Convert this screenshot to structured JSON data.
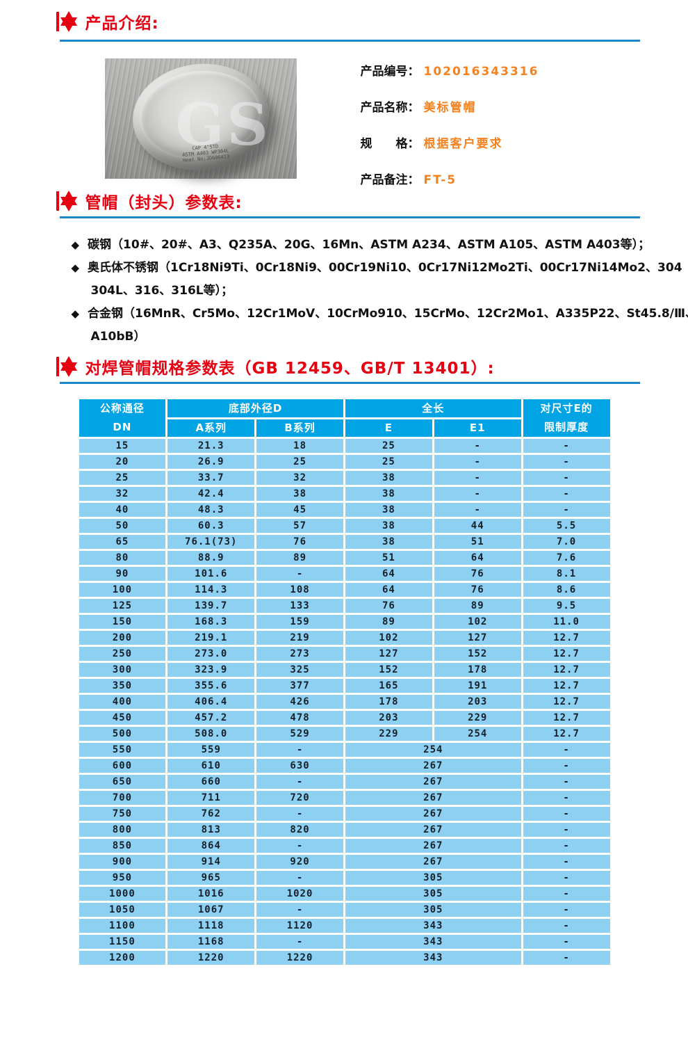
{
  "colors": {
    "accent_red": "#e60012",
    "divider_blue": "#1b87c9",
    "value_orange": "#f5821f",
    "table_header_bg": "#00a3e4",
    "table_row_bg": "#8dd0f2",
    "table_grid_white": "#ffffff"
  },
  "sections": {
    "intro_title": "产品介绍:",
    "params_title": "管帽（封头）参数表:",
    "spec_title": "对焊管帽规格参数表（GB 12459、GB/T 13401）:"
  },
  "product": {
    "photo": {
      "watermark": "GS",
      "stamp_lines": [
        "CAP 4\"STD",
        "ASTM A403 WP304L",
        "Heat No:JD606413"
      ]
    },
    "fields": [
      {
        "label": "产品编号：",
        "value": "102016343316"
      },
      {
        "label": "产品名称：",
        "value": "美标管帽"
      },
      {
        "label": "规　　格：",
        "value": "根据客户要求"
      },
      {
        "label": "产品备注：",
        "value": "FT-5"
      }
    ]
  },
  "materials": {
    "bullets": [
      {
        "lines": [
          "碳钢（10#、20#、A3、Q235A、20G、16Mn、ASTM A234、ASTM A105、ASTM A403等）；"
        ]
      },
      {
        "lines": [
          "奥氏体不锈钢（1Cr18Ni9Ti、0Cr18Ni9、00Cr19Ni10、0Cr17Ni12Mo2Ti、00Cr17Ni14Mo2、304",
          "304L、316、316L等）；"
        ]
      },
      {
        "lines": [
          "合金钢（16MnR、Cr5Mo、12Cr1MoV、10CrMo910、15CrMo、12Cr2Mo1、A335P22、St45.8/Ⅲ、",
          "A10bB）"
        ]
      }
    ]
  },
  "spec_table": {
    "header": {
      "col_dn": [
        "公称通径",
        "DN"
      ],
      "group_d": "底部外径D",
      "sub_a": "A系列",
      "sub_b": "B系列",
      "group_len": "全长",
      "sub_e": "E",
      "sub_e1": "E1",
      "col_limit": [
        "对尺寸E的",
        "限制厚度"
      ]
    },
    "rows": [
      {
        "dn": "15",
        "a": "21.3",
        "b": "18",
        "e": "25",
        "e1": "-",
        "t": "-",
        "merge": false
      },
      {
        "dn": "20",
        "a": "26.9",
        "b": "25",
        "e": "25",
        "e1": "-",
        "t": "-",
        "merge": false
      },
      {
        "dn": "25",
        "a": "33.7",
        "b": "32",
        "e": "38",
        "e1": "-",
        "t": "-",
        "merge": false
      },
      {
        "dn": "32",
        "a": "42.4",
        "b": "38",
        "e": "38",
        "e1": "-",
        "t": "-",
        "merge": false
      },
      {
        "dn": "40",
        "a": "48.3",
        "b": "45",
        "e": "38",
        "e1": "-",
        "t": "-",
        "merge": false
      },
      {
        "dn": "50",
        "a": "60.3",
        "b": "57",
        "e": "38",
        "e1": "44",
        "t": "5.5",
        "merge": false
      },
      {
        "dn": "65",
        "a": "76.1(73)",
        "b": "76",
        "e": "38",
        "e1": "51",
        "t": "7.0",
        "merge": false
      },
      {
        "dn": "80",
        "a": "88.9",
        "b": "89",
        "e": "51",
        "e1": "64",
        "t": "7.6",
        "merge": false
      },
      {
        "dn": "90",
        "a": "101.6",
        "b": "-",
        "e": "64",
        "e1": "76",
        "t": "8.1",
        "merge": false
      },
      {
        "dn": "100",
        "a": "114.3",
        "b": "108",
        "e": "64",
        "e1": "76",
        "t": "8.6",
        "merge": false
      },
      {
        "dn": "125",
        "a": "139.7",
        "b": "133",
        "e": "76",
        "e1": "89",
        "t": "9.5",
        "merge": false
      },
      {
        "dn": "150",
        "a": "168.3",
        "b": "159",
        "e": "89",
        "e1": "102",
        "t": "11.0",
        "merge": false
      },
      {
        "dn": "200",
        "a": "219.1",
        "b": "219",
        "e": "102",
        "e1": "127",
        "t": "12.7",
        "merge": false
      },
      {
        "dn": "250",
        "a": "273.0",
        "b": "273",
        "e": "127",
        "e1": "152",
        "t": "12.7",
        "merge": false
      },
      {
        "dn": "300",
        "a": "323.9",
        "b": "325",
        "e": "152",
        "e1": "178",
        "t": "12.7",
        "merge": false
      },
      {
        "dn": "350",
        "a": "355.6",
        "b": "377",
        "e": "165",
        "e1": "191",
        "t": "12.7",
        "merge": false
      },
      {
        "dn": "400",
        "a": "406.4",
        "b": "426",
        "e": "178",
        "e1": "203",
        "t": "12.7",
        "merge": false
      },
      {
        "dn": "450",
        "a": "457.2",
        "b": "478",
        "e": "203",
        "e1": "229",
        "t": "12.7",
        "merge": false
      },
      {
        "dn": "500",
        "a": "508.0",
        "b": "529",
        "e": "229",
        "e1": "254",
        "t": "12.7",
        "merge": false
      },
      {
        "dn": "550",
        "a": "559",
        "b": "-",
        "e": "254",
        "e1": "",
        "t": "-",
        "merge": true
      },
      {
        "dn": "600",
        "a": "610",
        "b": "630",
        "e": "267",
        "e1": "",
        "t": "-",
        "merge": true
      },
      {
        "dn": "650",
        "a": "660",
        "b": "-",
        "e": "267",
        "e1": "",
        "t": "-",
        "merge": true
      },
      {
        "dn": "700",
        "a": "711",
        "b": "720",
        "e": "267",
        "e1": "",
        "t": "-",
        "merge": true
      },
      {
        "dn": "750",
        "a": "762",
        "b": "-",
        "e": "267",
        "e1": "",
        "t": "-",
        "merge": true
      },
      {
        "dn": "800",
        "a": "813",
        "b": "820",
        "e": "267",
        "e1": "",
        "t": "-",
        "merge": true
      },
      {
        "dn": "850",
        "a": "864",
        "b": "-",
        "e": "267",
        "e1": "",
        "t": "-",
        "merge": true
      },
      {
        "dn": "900",
        "a": "914",
        "b": "920",
        "e": "267",
        "e1": "",
        "t": "-",
        "merge": true
      },
      {
        "dn": "950",
        "a": "965",
        "b": "-",
        "e": "305",
        "e1": "",
        "t": "-",
        "merge": true
      },
      {
        "dn": "1000",
        "a": "1016",
        "b": "1020",
        "e": "305",
        "e1": "",
        "t": "-",
        "merge": true
      },
      {
        "dn": "1050",
        "a": "1067",
        "b": "-",
        "e": "305",
        "e1": "",
        "t": "-",
        "merge": true
      },
      {
        "dn": "1100",
        "a": "1118",
        "b": "1120",
        "e": "343",
        "e1": "",
        "t": "-",
        "merge": true
      },
      {
        "dn": "1150",
        "a": "1168",
        "b": "-",
        "e": "343",
        "e1": "",
        "t": "-",
        "merge": true
      },
      {
        "dn": "1200",
        "a": "1220",
        "b": "1220",
        "e": "343",
        "e1": "",
        "t": "-",
        "merge": true
      }
    ]
  }
}
